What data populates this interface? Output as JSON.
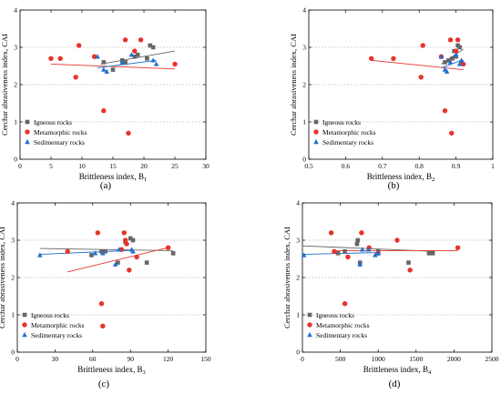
{
  "figure": {
    "legend_labels": [
      "Igneous rocks",
      "Metamorphic rocks",
      "Sedimentary rocks"
    ],
    "colors": {
      "igneous": "#666666",
      "metamorphic": "#e8332a",
      "sedimentary": "#1f6fd1",
      "grid": "#b8b8b8",
      "axis": "#000000"
    }
  },
  "chart_data": [
    {
      "panel_label": "(a)",
      "type": "scatter",
      "xlabel": "Brittleness index, B",
      "xlabel_sub": "1",
      "ylabel": "Cerchar abrasiveness index, CAI",
      "xlim": [
        0,
        30
      ],
      "ylim": [
        0,
        4
      ],
      "xticks": [
        0,
        5,
        10,
        15,
        20,
        25,
        30
      ],
      "yticks": [
        0,
        1,
        2,
        3,
        4
      ],
      "grid": "horizontal-dotted",
      "legend_position": "bottom-left",
      "series": [
        {
          "name": "Igneous rocks",
          "marker": "square",
          "points": [
            [
              13.5,
              2.6
            ],
            [
              15,
              2.4
            ],
            [
              16.5,
              2.65
            ],
            [
              17,
              2.6
            ],
            [
              18.5,
              2.75
            ],
            [
              19,
              2.8
            ],
            [
              20.5,
              2.7
            ],
            [
              21,
              3.05
            ],
            [
              21.5,
              3.0
            ]
          ]
        },
        {
          "name": "Metamorphic rocks",
          "marker": "circle",
          "points": [
            [
              5,
              2.7
            ],
            [
              6.5,
              2.7
            ],
            [
              9,
              2.2
            ],
            [
              9.5,
              3.05
            ],
            [
              12,
              2.75
            ],
            [
              13.5,
              1.3
            ],
            [
              17,
              3.2
            ],
            [
              17.5,
              0.7
            ],
            [
              18.5,
              2.9
            ],
            [
              19.5,
              3.2
            ],
            [
              25,
              2.55
            ]
          ]
        },
        {
          "name": "Sedimentary rocks",
          "marker": "triangle",
          "points": [
            [
              12.5,
              2.75
            ],
            [
              13.5,
              2.4
            ],
            [
              14,
              2.35
            ],
            [
              16.5,
              2.6
            ],
            [
              18,
              2.8
            ],
            [
              22,
              2.55
            ],
            [
              21.5,
              2.65
            ]
          ]
        }
      ],
      "trendlines": [
        {
          "series": "Igneous rocks",
          "from": [
            13,
            2.55
          ],
          "to": [
            25,
            2.9
          ]
        },
        {
          "series": "Metamorphic rocks",
          "from": [
            5,
            2.55
          ],
          "to": [
            25,
            2.42
          ]
        },
        {
          "series": "Sedimentary rocks",
          "from": [
            12.5,
            2.45
          ],
          "to": [
            22,
            2.65
          ]
        }
      ]
    },
    {
      "panel_label": "(b)",
      "type": "scatter",
      "xlabel": "Brittleness index, B",
      "xlabel_sub": "2",
      "ylabel": "Cerchar abrasiveness index, CAI",
      "xlim": [
        0.5,
        1.0
      ],
      "ylim": [
        0,
        4
      ],
      "xticks": [
        0.5,
        0.6,
        0.7,
        0.8,
        0.9,
        1.0
      ],
      "yticks": [
        0,
        1,
        2,
        3,
        4
      ],
      "grid": "horizontal-dotted",
      "legend_position": "bottom-left",
      "series": [
        {
          "name": "Igneous rocks",
          "marker": "square",
          "points": [
            [
              0.87,
              2.6
            ],
            [
              0.88,
              2.65
            ],
            [
              0.89,
              2.7
            ],
            [
              0.895,
              2.9
            ],
            [
              0.9,
              2.75
            ],
            [
              0.905,
              3.05
            ],
            [
              0.91,
              3.0
            ],
            [
              0.915,
              2.6
            ]
          ]
        },
        {
          "name": "Metamorphic rocks",
          "marker": "circle",
          "points": [
            [
              0.67,
              2.7
            ],
            [
              0.73,
              2.7
            ],
            [
              0.805,
              2.2
            ],
            [
              0.81,
              3.05
            ],
            [
              0.86,
              2.75
            ],
            [
              0.87,
              1.3
            ],
            [
              0.885,
              3.2
            ],
            [
              0.888,
              0.7
            ],
            [
              0.9,
              2.9
            ],
            [
              0.905,
              3.2
            ],
            [
              0.92,
              2.55
            ]
          ]
        },
        {
          "name": "Sedimentary rocks",
          "marker": "triangle",
          "points": [
            [
              0.86,
              2.75
            ],
            [
              0.87,
              2.4
            ],
            [
              0.875,
              2.35
            ],
            [
              0.885,
              2.6
            ],
            [
              0.9,
              2.8
            ],
            [
              0.91,
              2.55
            ],
            [
              0.915,
              2.65
            ]
          ]
        }
      ],
      "trendlines": [
        {
          "series": "Igneous rocks",
          "from": [
            0.86,
            2.55
          ],
          "to": [
            0.92,
            2.95
          ]
        },
        {
          "series": "Metamorphic rocks",
          "from": [
            0.67,
            2.65
          ],
          "to": [
            0.92,
            2.4
          ]
        },
        {
          "series": "Sedimentary rocks",
          "from": [
            0.86,
            2.45
          ],
          "to": [
            0.915,
            2.65
          ]
        }
      ]
    },
    {
      "panel_label": "(c)",
      "type": "scatter",
      "xlabel": "Brittleness index, B",
      "xlabel_sub": "3",
      "ylabel": "Cerchar abrasiveness index, CAI",
      "xlim": [
        0,
        150
      ],
      "ylim": [
        0,
        4
      ],
      "xticks": [
        0,
        30,
        60,
        90,
        120,
        150
      ],
      "yticks": [
        0,
        1,
        2,
        3,
        4
      ],
      "grid": "horizontal-dotted",
      "legend_position": "bottom-left",
      "series": [
        {
          "name": "Igneous rocks",
          "marker": "square",
          "points": [
            [
              59,
              2.6
            ],
            [
              67,
              2.7
            ],
            [
              70,
              2.7
            ],
            [
              80,
              2.4
            ],
            [
              86,
              2.95
            ],
            [
              90,
              3.05
            ],
            [
              92,
              3.0
            ],
            [
              103,
              2.4
            ],
            [
              124,
              2.65
            ]
          ]
        },
        {
          "name": "Metamorphic rocks",
          "marker": "circle",
          "points": [
            [
              40,
              2.7
            ],
            [
              64,
              3.2
            ],
            [
              67,
              1.3
            ],
            [
              68,
              0.7
            ],
            [
              83,
              2.75
            ],
            [
              85,
              3.2
            ],
            [
              86,
              3.0
            ],
            [
              87,
              2.9
            ],
            [
              89,
              2.2
            ],
            [
              95,
              2.55
            ],
            [
              120,
              2.8
            ]
          ]
        },
        {
          "name": "Sedimentary rocks",
          "marker": "triangle",
          "points": [
            [
              18,
              2.6
            ],
            [
              62,
              2.65
            ],
            [
              68,
              2.65
            ],
            [
              78,
              2.35
            ],
            [
              81,
              2.75
            ],
            [
              91,
              2.75
            ],
            [
              92,
              2.7
            ]
          ]
        }
      ],
      "trendlines": [
        {
          "series": "Igneous rocks",
          "from": [
            18,
            2.78
          ],
          "to": [
            124,
            2.72
          ]
        },
        {
          "series": "Metamorphic rocks",
          "from": [
            40,
            2.15
          ],
          "to": [
            122,
            2.82
          ]
        },
        {
          "series": "Sedimentary rocks",
          "from": [
            18,
            2.62
          ],
          "to": [
            92,
            2.73
          ]
        }
      ]
    },
    {
      "panel_label": "(d)",
      "type": "scatter",
      "xlabel": "Brittleness index, B",
      "xlabel_sub": "4",
      "ylabel": "Cerchar abrasiveness index, CAI",
      "xlim": [
        0,
        2500
      ],
      "ylim": [
        0,
        4
      ],
      "xticks": [
        0,
        500,
        1000,
        1500,
        2000,
        2500
      ],
      "yticks": [
        0,
        1,
        2,
        3,
        4
      ],
      "grid": "horizontal-dotted",
      "legend_position": "bottom-left",
      "series": [
        {
          "name": "Igneous rocks",
          "marker": "square",
          "points": [
            [
              470,
              2.65
            ],
            [
              560,
              2.7
            ],
            [
              720,
              2.9
            ],
            [
              730,
              3.0
            ],
            [
              760,
              2.4
            ],
            [
              1000,
              2.7
            ],
            [
              1400,
              2.4
            ],
            [
              1670,
              2.65
            ],
            [
              1720,
              2.65
            ]
          ]
        },
        {
          "name": "Metamorphic rocks",
          "marker": "circle",
          "points": [
            [
              380,
              3.2
            ],
            [
              420,
              2.7
            ],
            [
              560,
              1.3
            ],
            [
              600,
              2.55
            ],
            [
              780,
              3.2
            ],
            [
              880,
              2.8
            ],
            [
              1000,
              2.65
            ],
            [
              1250,
              3.0
            ],
            [
              1420,
              2.2
            ],
            [
              2050,
              2.8
            ]
          ]
        },
        {
          "name": "Sedimentary rocks",
          "marker": "triangle",
          "points": [
            [
              20,
              2.6
            ],
            [
              760,
              2.35
            ],
            [
              790,
              2.75
            ],
            [
              870,
              2.75
            ],
            [
              960,
              2.6
            ],
            [
              1000,
              2.65
            ]
          ]
        }
      ],
      "trendlines": [
        {
          "series": "Igneous rocks",
          "from": [
            0,
            2.85
          ],
          "to": [
            1750,
            2.7
          ]
        },
        {
          "series": "Metamorphic rocks",
          "from": [
            400,
            2.72
          ],
          "to": [
            2050,
            2.72
          ]
        },
        {
          "series": "Sedimentary rocks",
          "from": [
            0,
            2.62
          ],
          "to": [
            1000,
            2.67
          ]
        }
      ]
    }
  ]
}
